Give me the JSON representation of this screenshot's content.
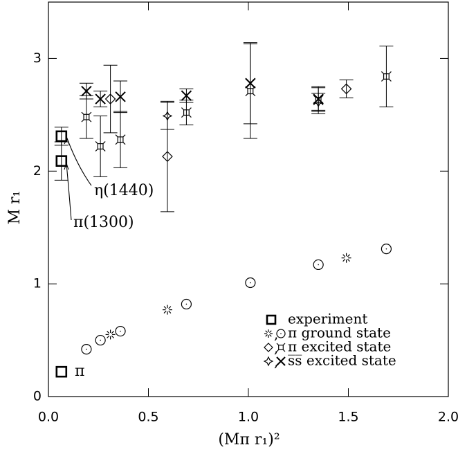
{
  "chart_data": {
    "type": "scatter",
    "xlabel": "(Mπ r₁)²",
    "ylabel": "M r₁",
    "xlim": [
      0,
      2
    ],
    "ylim": [
      0,
      3.5
    ],
    "xticks": [
      {
        "value": 0,
        "label": "0.0"
      },
      {
        "value": 0.5,
        "label": "0.5"
      },
      {
        "value": 1,
        "label": "1.0"
      },
      {
        "value": 1.5,
        "label": "1.5"
      },
      {
        "value": 2,
        "label": "2.0"
      }
    ],
    "yticks": [
      0,
      1,
      2,
      3
    ],
    "color": "#000000",
    "legend_separator": ",",
    "annotations": [
      "η(1440)",
      "π(1300)",
      "π"
    ],
    "series": [
      {
        "name": "experiment",
        "subsets": [
          {
            "marker": "square",
            "x": [
              0.065,
              0.065,
              0.065
            ],
            "values": [
              0.22,
              2.09,
              2.31
            ],
            "errors": [
              null,
              0.17,
              0.08
            ]
          }
        ]
      },
      {
        "name": "π ground state",
        "subsets": [
          {
            "marker": "asterisk",
            "x": [
              0.31,
              0.595,
              1.49
            ],
            "values": [
              0.55,
              0.77,
              1.23
            ],
            "errors": [
              null,
              null,
              null
            ]
          },
          {
            "marker": "octagon",
            "x": [
              0.19,
              0.26,
              0.36,
              0.69,
              1.01,
              1.35,
              1.69
            ],
            "values": [
              0.42,
              0.5,
              0.58,
              0.82,
              1.01,
              1.17,
              1.31
            ],
            "errors": [
              null,
              null,
              null,
              null,
              null,
              null,
              null
            ]
          }
        ]
      },
      {
        "name": "π excited state",
        "subsets": [
          {
            "marker": "diamond",
            "x": [
              0.31,
              0.595,
              1.49
            ],
            "values": [
              2.64,
              2.13,
              2.73
            ],
            "errors": [
              0.3,
              0.49,
              0.08
            ]
          },
          {
            "marker": "boxcross",
            "x": [
              0.19,
              0.26,
              0.36,
              0.69,
              1.01,
              1.35,
              1.69
            ],
            "values": [
              2.48,
              2.22,
              2.28,
              2.52,
              2.71,
              2.63,
              2.84
            ],
            "errors": [
              0.19,
              0.27,
              0.25,
              0.11,
              0.42,
              0.12,
              0.27
            ]
          }
        ]
      },
      {
        "name": "s̅s̅ excited state",
        "subsets": [
          {
            "marker": "sparkle",
            "x": [
              0.595,
              1.35
            ],
            "values": [
              2.49,
              2.61
            ],
            "errors": [
              0.12,
              0.08
            ]
          },
          {
            "marker": "cross",
            "x": [
              0.19,
              0.26,
              0.36,
              0.69,
              1.01,
              1.35
            ],
            "values": [
              2.71,
              2.64,
              2.66,
              2.67,
              2.78,
              2.64
            ],
            "errors": [
              0.07,
              0.07,
              0.14,
              0.06,
              0.36,
              0.1
            ]
          }
        ]
      }
    ]
  }
}
